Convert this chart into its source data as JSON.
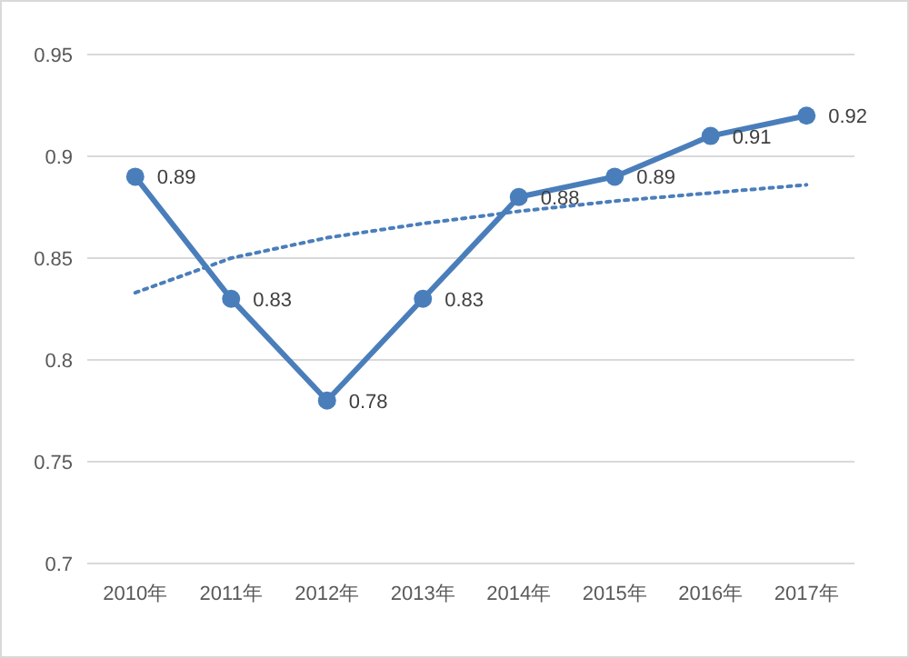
{
  "chart_data": {
    "type": "line",
    "categories": [
      "2010年",
      "2011年",
      "2012年",
      "2013年",
      "2014年",
      "2015年",
      "2016年",
      "2017年"
    ],
    "series": [
      {
        "color": "#4a7ebb",
        "values": [
          0.89,
          0.83,
          0.78,
          0.83,
          0.88,
          0.89,
          0.91,
          0.92
        ],
        "value_labels": [
          "0.89",
          "0.83",
          "0.78",
          "0.83",
          "0.88",
          "0.89",
          "0.91",
          "0.92"
        ],
        "marker": "circle",
        "line_style": "solid"
      },
      {
        "color": "#4a7ebb",
        "values": [
          0.833,
          0.85,
          0.86,
          0.867,
          0.873,
          0.878,
          0.882,
          0.886
        ],
        "marker": "none",
        "line_style": "dotted"
      }
    ],
    "ylim": [
      0.7,
      0.95
    ],
    "yticks": [
      0.7,
      0.75,
      0.8,
      0.85,
      0.9,
      0.95
    ],
    "grid": "y"
  }
}
